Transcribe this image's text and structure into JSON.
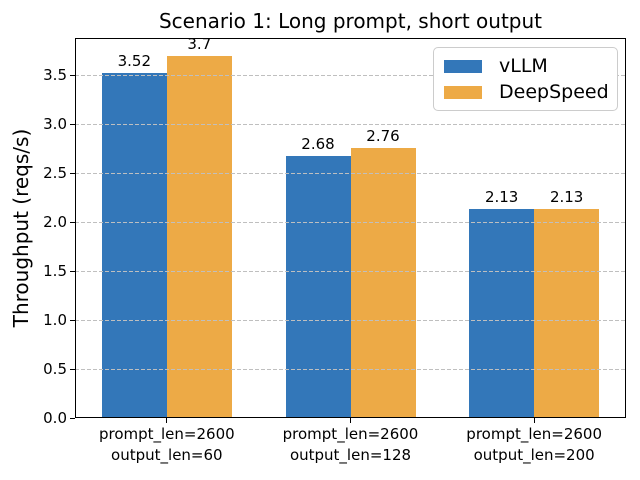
{
  "chart_data": {
    "type": "bar",
    "title": "Scenario 1: Long prompt, short output",
    "xlabel": "",
    "ylabel": "Throughput (reqs/s)",
    "categories": [
      [
        "prompt_len=2600",
        "output_len=60"
      ],
      [
        "prompt_len=2600",
        "output_len=128"
      ],
      [
        "prompt_len=2600",
        "output_len=200"
      ]
    ],
    "series": [
      {
        "name": "vLLM",
        "color": "#3377b9",
        "values": [
          3.52,
          2.68,
          2.13
        ],
        "value_labels": [
          "3.52",
          "2.68",
          "2.13"
        ]
      },
      {
        "name": "DeepSpeed",
        "color": "#edaa46",
        "values": [
          3.7,
          2.76,
          2.13
        ],
        "value_labels": [
          "3.7",
          "2.76",
          "2.13"
        ]
      }
    ],
    "ylim": [
      0,
      3.88
    ],
    "yticks": {
      "values": [
        0,
        0.5,
        1.0,
        1.5,
        2.0,
        2.5,
        3.0,
        3.5
      ],
      "labels": [
        "0.0",
        "0.5",
        "1.0",
        "1.5",
        "2.0",
        "2.5",
        "3.0",
        "3.5"
      ]
    },
    "grid": "horizontal dashed, drawn above bars",
    "legend_position": "upper right",
    "colors": {
      "gridline": "#bfbfbf",
      "spine": "#000000",
      "text": "#000000",
      "legend_border": "#cccccc",
      "background": "#ffffff"
    }
  }
}
